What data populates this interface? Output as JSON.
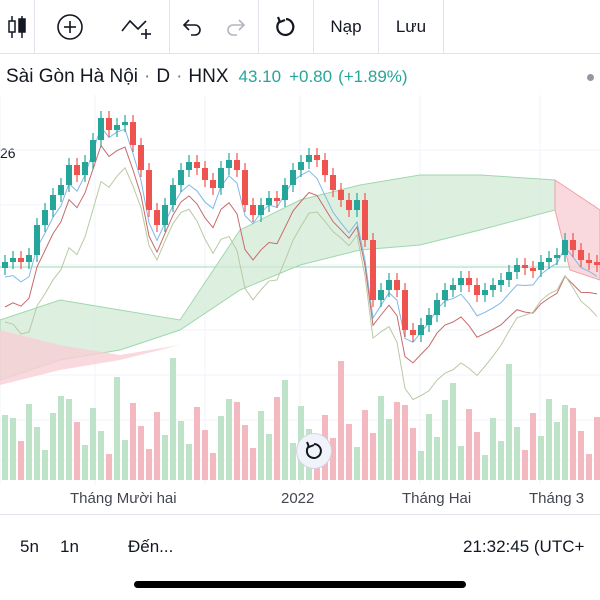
{
  "toolbar": {
    "candles_icon": "candlestick-icon",
    "indicators_icon": "add-indicator-icon",
    "compare_icon": "compare-icon",
    "undo_icon": "undo-icon",
    "redo_icon": "redo-icon",
    "reload_icon": "reload-icon",
    "load_label": "Nạp",
    "save_label": "Lưu"
  },
  "header": {
    "symbol_name": "Sài Gòn Hà Nội",
    "interval": "D",
    "exchange": "HNX",
    "price": "43.10",
    "change": "+0.80",
    "change_pct": "(+1.89%)"
  },
  "left_partial_label": "26",
  "x_axis": {
    "labels": [
      "Tháng Mười hai",
      "2022",
      "Tháng Hai",
      "Tháng 3"
    ]
  },
  "bottom": {
    "range_5d": "5n",
    "range_1d": "1n",
    "goto": "Đến...",
    "time": "21:32:45 (UTC+"
  },
  "colors": {
    "up": "#26a69a",
    "down": "#ef5350",
    "cloud_up": "#cfe9d3",
    "cloud_down": "#f8d0d4",
    "volume_up": "#bfe3c8",
    "volume_down": "#f4b9c0"
  },
  "chart_data": {
    "type": "candlestick",
    "x_labels": [
      "Tháng Mười hai",
      "2022",
      "Tháng Hai",
      "Tháng 3"
    ],
    "last_price": 43.1,
    "change": 0.8,
    "change_pct": 1.89
  }
}
